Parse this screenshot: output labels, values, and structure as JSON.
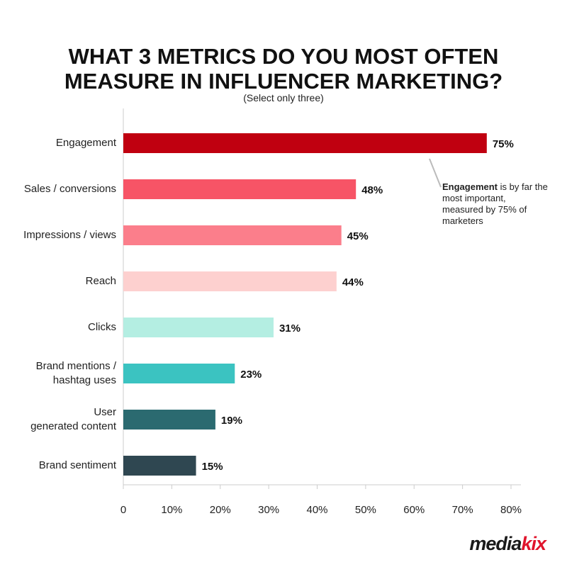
{
  "chart_data": {
    "type": "bar",
    "orientation": "horizontal",
    "title": [
      "WHAT 3 METRICS DO YOU MOST OFTEN",
      "MEASURE IN INFLUENCER MARKETING?"
    ],
    "subtitle": "(Select only three)",
    "categories": [
      "Engagement",
      "Sales / conversions",
      "Impressions / views",
      "Reach",
      "Clicks",
      "Brand mentions /\nhashtag uses",
      "User\ngenerated content",
      "Brand sentiment"
    ],
    "values": [
      75,
      48,
      45,
      44,
      31,
      23,
      19,
      15
    ],
    "value_labels": [
      "75%",
      "48%",
      "45%",
      "44%",
      "31%",
      "23%",
      "19%",
      "15%"
    ],
    "colors": [
      "#c00010",
      "#f75466",
      "#fb7e8b",
      "#fdd0cf",
      "#b4eee2",
      "#3bc3c1",
      "#2b6a70",
      "#2f4751"
    ],
    "xlim": [
      0,
      80
    ],
    "xticks": [
      0,
      {
        "value": 10,
        "label": "10%"
      },
      {
        "value": 20,
        "label": "20%"
      },
      {
        "value": 30,
        "label": "30%"
      },
      {
        "value": 40,
        "label": "40%"
      },
      {
        "value": 50,
        "label": "50%"
      },
      {
        "value": 60,
        "label": "60%"
      },
      {
        "value": 70,
        "label": "70%"
      },
      {
        "value": 80,
        "label": "80%"
      }
    ],
    "annotation": {
      "bold": "Engagement",
      "text": "is by far the most important, measured by 75% of marketers"
    },
    "logo": {
      "main": "media",
      "accent": "kix"
    }
  }
}
